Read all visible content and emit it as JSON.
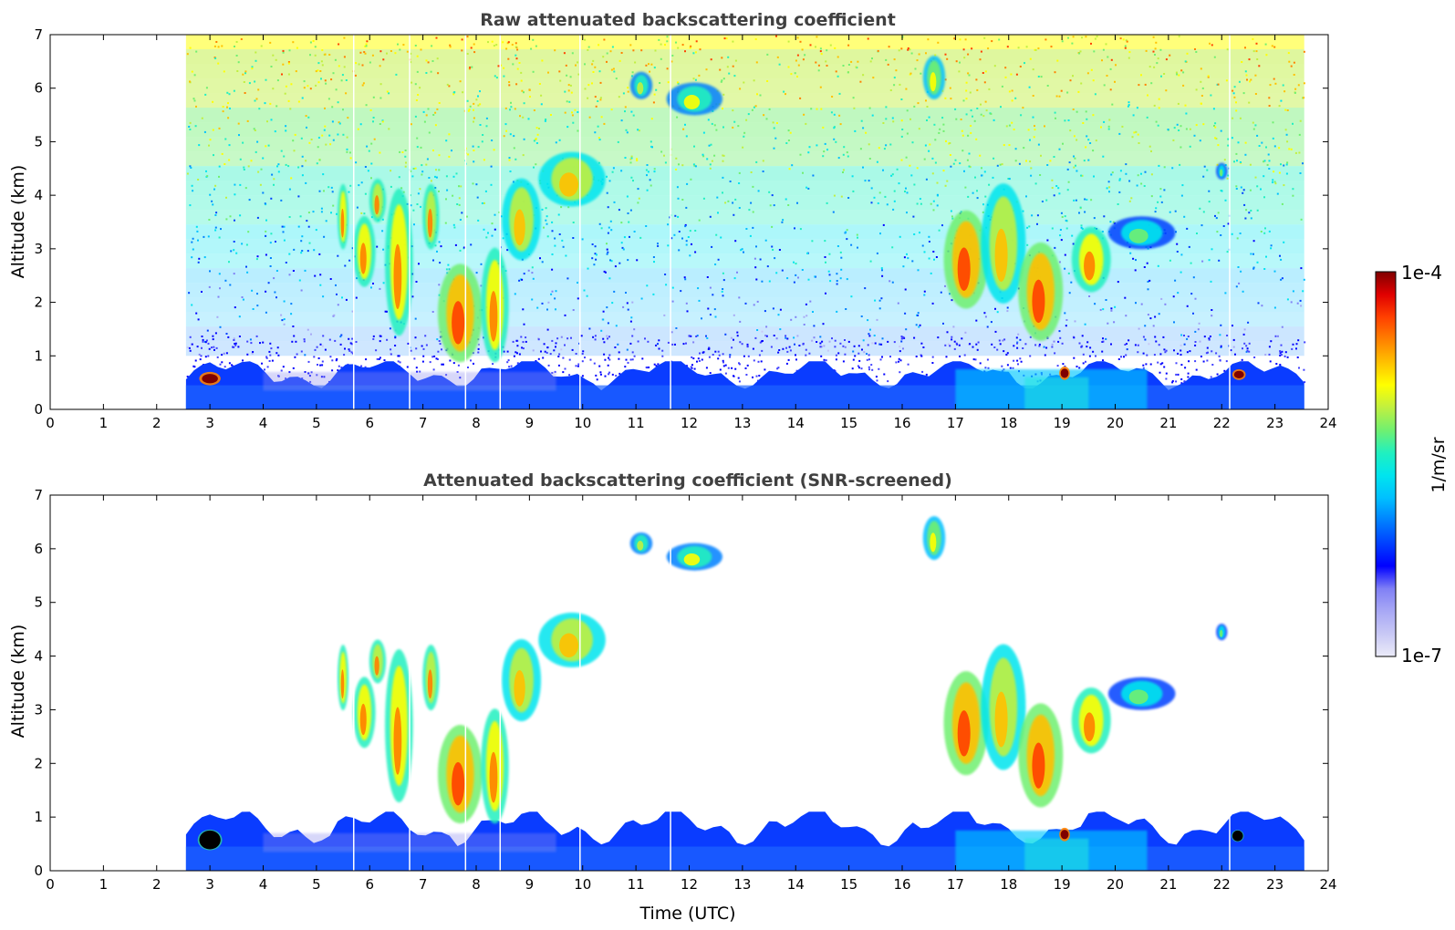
{
  "chart_data": [
    {
      "type": "heatmap",
      "title": "Raw attenuated backscattering coefficient",
      "xlabel": "",
      "ylabel": "Altitude (km)",
      "xlim": [
        0,
        24
      ],
      "ylim": [
        0,
        7
      ],
      "x_ticks": [
        "0",
        "1",
        "2",
        "3",
        "4",
        "5",
        "6",
        "7",
        "8",
        "9",
        "10",
        "11",
        "12",
        "13",
        "14",
        "15",
        "16",
        "17",
        "18",
        "19",
        "20",
        "21",
        "22",
        "23",
        "24"
      ],
      "y_ticks": [
        "0",
        "1",
        "2",
        "3",
        "4",
        "5",
        "6",
        "7"
      ],
      "data_time_range": [
        2.55,
        23.55
      ],
      "noise_above_km": 1.0,
      "boundary_layer_top_km": 0.9,
      "data_gaps_utc": [
        5.7,
        6.75,
        7.8,
        8.45,
        9.95,
        11.65,
        22.15
      ],
      "features": [
        {
          "kind": "cloud",
          "t": [
            5.4,
            5.6
          ],
          "z": [
            3.0,
            4.2
          ],
          "level": 0.8
        },
        {
          "kind": "cloud",
          "t": [
            5.7,
            6.1
          ],
          "z": [
            2.3,
            3.6
          ],
          "level": 0.8
        },
        {
          "kind": "cloud",
          "t": [
            6.0,
            6.3
          ],
          "z": [
            3.5,
            4.3
          ],
          "level": 0.75
        },
        {
          "kind": "cloud",
          "t": [
            6.3,
            6.8
          ],
          "z": [
            1.4,
            4.1
          ],
          "level": 0.8
        },
        {
          "kind": "cloud",
          "t": [
            7.0,
            7.3
          ],
          "z": [
            3.0,
            4.2
          ],
          "level": 0.75
        },
        {
          "kind": "cloud",
          "t": [
            7.3,
            8.1
          ],
          "z": [
            0.9,
            2.7
          ],
          "level": 0.85
        },
        {
          "kind": "cloud",
          "t": [
            8.1,
            8.6
          ],
          "z": [
            0.9,
            3.0
          ],
          "level": 0.8
        },
        {
          "kind": "cloud",
          "t": [
            8.5,
            9.2
          ],
          "z": [
            2.8,
            4.3
          ],
          "level": 0.7
        },
        {
          "kind": "cloud",
          "t": [
            9.2,
            10.4
          ],
          "z": [
            3.8,
            4.8
          ],
          "level": 0.7
        },
        {
          "kind": "cloud",
          "t": [
            10.9,
            11.3
          ],
          "z": [
            5.8,
            6.3
          ],
          "level": 0.6
        },
        {
          "kind": "cloud",
          "t": [
            11.6,
            12.6
          ],
          "z": [
            5.5,
            6.1
          ],
          "level": 0.63
        },
        {
          "kind": "cloud",
          "t": [
            16.4,
            16.8
          ],
          "z": [
            5.8,
            6.6
          ],
          "level": 0.65
        },
        {
          "kind": "cloud",
          "t": [
            16.8,
            17.6
          ],
          "z": [
            1.9,
            3.7
          ],
          "level": 0.85
        },
        {
          "kind": "cloud",
          "t": [
            17.5,
            18.3
          ],
          "z": [
            2.0,
            4.2
          ],
          "level": 0.7
        },
        {
          "kind": "cloud",
          "t": [
            18.2,
            19.0
          ],
          "z": [
            1.3,
            3.1
          ],
          "level": 0.85
        },
        {
          "kind": "cloud",
          "t": [
            19.2,
            19.9
          ],
          "z": [
            2.2,
            3.4
          ],
          "level": 0.8
        },
        {
          "kind": "cloud",
          "t": [
            19.9,
            21.1
          ],
          "z": [
            3.0,
            3.6
          ],
          "level": 0.55
        },
        {
          "kind": "cloud",
          "t": [
            21.9,
            22.1
          ],
          "z": [
            4.3,
            4.6
          ],
          "level": 0.55
        },
        {
          "kind": "hotspot",
          "t": [
            2.8,
            3.2
          ],
          "z": [
            0.45,
            0.7
          ],
          "level": 1.0
        },
        {
          "kind": "hotspot",
          "t": [
            18.95,
            19.15
          ],
          "z": [
            0.55,
            0.8
          ],
          "level": 1.0
        },
        {
          "kind": "hotspot",
          "t": [
            22.2,
            22.45
          ],
          "z": [
            0.55,
            0.75
          ],
          "level": 1.0
        }
      ]
    },
    {
      "type": "heatmap",
      "title": "Attenuated backscattering coefficient (SNR-screened)",
      "xlabel": "Time (UTC)",
      "ylabel": "Altitude (km)",
      "xlim": [
        0,
        24
      ],
      "ylim": [
        0,
        7
      ],
      "x_ticks": [
        "0",
        "1",
        "2",
        "3",
        "4",
        "5",
        "6",
        "7",
        "8",
        "9",
        "10",
        "11",
        "12",
        "13",
        "14",
        "15",
        "16",
        "17",
        "18",
        "19",
        "20",
        "21",
        "22",
        "23",
        "24"
      ],
      "y_ticks": [
        "0",
        "1",
        "2",
        "3",
        "4",
        "5",
        "6",
        "7"
      ],
      "data_time_range": [
        2.55,
        23.55
      ],
      "noise_above_km": null,
      "boundary_layer_top_km": 1.1,
      "data_gaps_utc": [
        5.7,
        6.75,
        7.8,
        8.45,
        9.95,
        11.65,
        22.15
      ],
      "features": [
        {
          "kind": "cloud",
          "t": [
            5.4,
            5.6
          ],
          "z": [
            3.0,
            4.2
          ],
          "level": 0.8
        },
        {
          "kind": "cloud",
          "t": [
            5.7,
            6.1
          ],
          "z": [
            2.3,
            3.6
          ],
          "level": 0.8
        },
        {
          "kind": "cloud",
          "t": [
            6.0,
            6.3
          ],
          "z": [
            3.5,
            4.3
          ],
          "level": 0.75
        },
        {
          "kind": "cloud",
          "t": [
            6.3,
            6.8
          ],
          "z": [
            1.3,
            4.1
          ],
          "level": 0.8
        },
        {
          "kind": "cloud",
          "t": [
            7.0,
            7.3
          ],
          "z": [
            3.0,
            4.2
          ],
          "level": 0.75
        },
        {
          "kind": "cloud",
          "t": [
            7.3,
            8.1
          ],
          "z": [
            0.9,
            2.7
          ],
          "level": 0.85
        },
        {
          "kind": "cloud",
          "t": [
            8.1,
            8.6
          ],
          "z": [
            0.9,
            3.0
          ],
          "level": 0.8
        },
        {
          "kind": "cloud",
          "t": [
            8.5,
            9.2
          ],
          "z": [
            2.8,
            4.3
          ],
          "level": 0.7
        },
        {
          "kind": "cloud",
          "t": [
            9.2,
            10.4
          ],
          "z": [
            3.8,
            4.8
          ],
          "level": 0.7
        },
        {
          "kind": "cloud",
          "t": [
            10.9,
            11.3
          ],
          "z": [
            5.9,
            6.3
          ],
          "level": 0.62
        },
        {
          "kind": "cloud",
          "t": [
            11.6,
            12.6
          ],
          "z": [
            5.6,
            6.1
          ],
          "level": 0.63
        },
        {
          "kind": "cloud",
          "t": [
            16.4,
            16.8
          ],
          "z": [
            5.8,
            6.6
          ],
          "level": 0.65
        },
        {
          "kind": "cloud",
          "t": [
            16.8,
            17.6
          ],
          "z": [
            1.8,
            3.7
          ],
          "level": 0.85
        },
        {
          "kind": "cloud",
          "t": [
            17.5,
            18.3
          ],
          "z": [
            1.9,
            4.2
          ],
          "level": 0.7
        },
        {
          "kind": "cloud",
          "t": [
            18.2,
            19.0
          ],
          "z": [
            1.2,
            3.1
          ],
          "level": 0.85
        },
        {
          "kind": "cloud",
          "t": [
            19.2,
            19.9
          ],
          "z": [
            2.2,
            3.4
          ],
          "level": 0.8
        },
        {
          "kind": "cloud",
          "t": [
            19.9,
            21.1
          ],
          "z": [
            3.0,
            3.6
          ],
          "level": 0.55
        },
        {
          "kind": "cloud",
          "t": [
            21.9,
            22.1
          ],
          "z": [
            4.3,
            4.6
          ],
          "level": 0.55
        },
        {
          "kind": "hotspot",
          "t": [
            18.95,
            19.15
          ],
          "z": [
            0.55,
            0.8
          ],
          "level": 1.0
        },
        {
          "kind": "black-patch",
          "t": [
            2.8,
            3.2
          ],
          "z": [
            0.4,
            0.75
          ]
        },
        {
          "kind": "black-patch",
          "t": [
            22.2,
            22.4
          ],
          "z": [
            0.55,
            0.75
          ]
        }
      ]
    }
  ],
  "colorbar": {
    "max_label": "1e-4",
    "min_label": "1e-7",
    "unit_label": "1/m/sr",
    "colors": [
      "#ebebf8",
      "#c8c8f5",
      "#a8a8f5",
      "#8080f5",
      "#0000ff",
      "#0040ff",
      "#0080ff",
      "#00c0ff",
      "#00e5ee",
      "#20f0c0",
      "#70f070",
      "#c0f040",
      "#ffff00",
      "#ffc000",
      "#ff8000",
      "#ff4000",
      "#e00000",
      "#7f0000"
    ]
  }
}
